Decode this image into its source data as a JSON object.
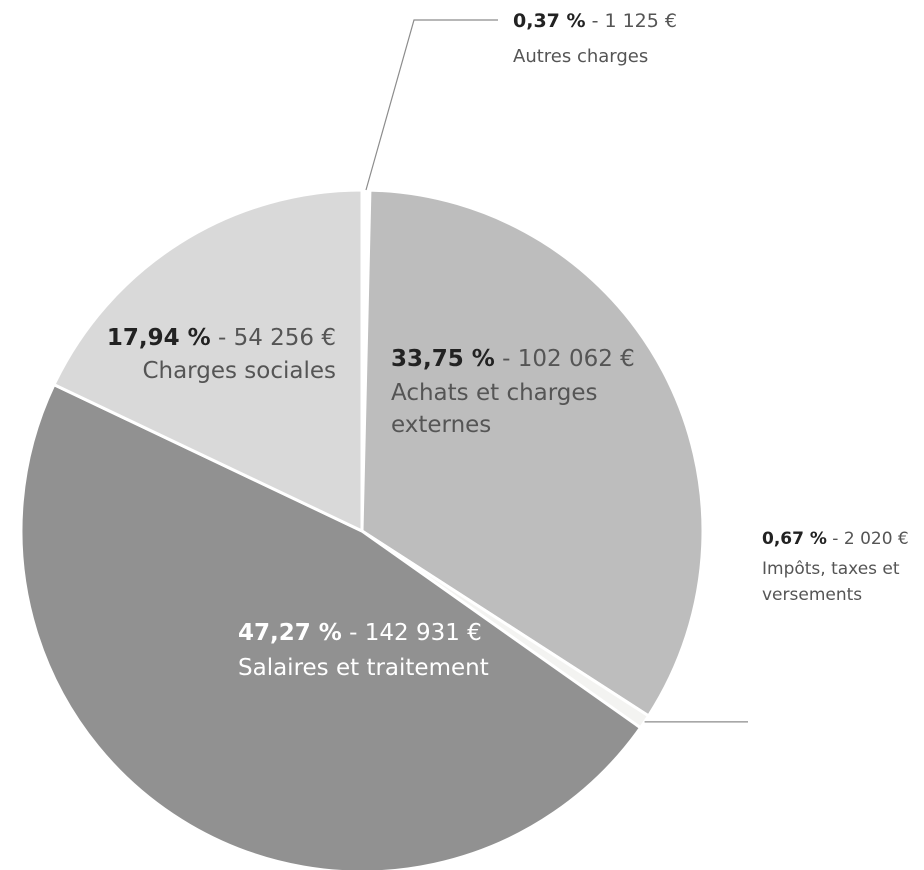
{
  "chart_data": {
    "type": "pie",
    "slices": [
      {
        "label": "Autres charges",
        "percent": 0.37,
        "percent_text": "0,37 %",
        "value": 1125,
        "value_text": "1 125 €",
        "color": "#ffffff"
      },
      {
        "label": "Achats et charges externes",
        "percent": 33.75,
        "percent_text": "33,75 %",
        "value": 102062,
        "value_text": "102 062 €",
        "color": "#bdbdbd"
      },
      {
        "label": "Impôts, taxes et versements",
        "percent": 0.67,
        "percent_text": "0,67 %",
        "value": 2020,
        "value_text": "2 020 €",
        "color": "#f3f3f1"
      },
      {
        "label": "Salaires et traitement",
        "percent": 47.27,
        "percent_text": "47,27 %",
        "value": 142931,
        "value_text": "142 931 €",
        "color": "#919191"
      },
      {
        "label": "Charges sociales",
        "percent": 17.94,
        "percent_text": "17,94 %",
        "value": 54256,
        "value_text": "54 256 €",
        "color": "#d9d9d9"
      }
    ],
    "start": "12 o'clock",
    "direction": "clockwise",
    "label_separator": " - ",
    "colors": {
      "slice_border": "#ffffff",
      "leader_line": "#8c8c8c",
      "dark_text": "#222222",
      "mid_text": "#555555",
      "light_text": "#ffffff"
    }
  }
}
